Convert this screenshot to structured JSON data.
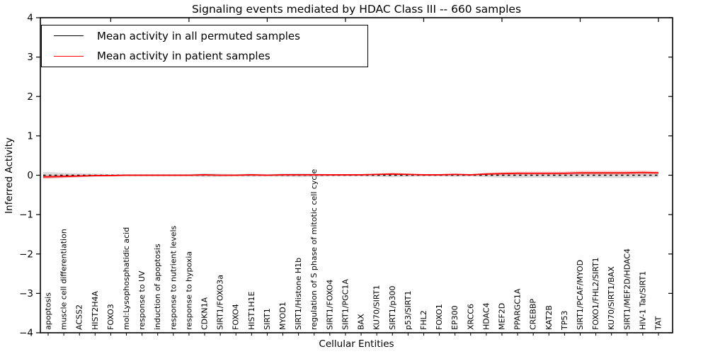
{
  "chart_data": {
    "type": "line",
    "title": "Signaling events mediated by HDAC Class III -- 660 samples",
    "xlabel": "Cellular Entities",
    "ylabel": "Inferred Activity",
    "ylim": [
      -4,
      4
    ],
    "yticks": [
      -4,
      -3,
      -2,
      -1,
      0,
      1,
      2,
      3,
      4
    ],
    "grid": false,
    "legend_position": "upper left",
    "x_major_tick_every": 5,
    "categories": [
      "apoptosis",
      "muscle cell differentiation",
      "ACSS2",
      "HIST2H4A",
      "FOXO3",
      "mol:Lysophosphatidic acid",
      "response to UV",
      "induction of apoptosis",
      "response to nutrient levels",
      "response to hypoxia",
      "CDKN1A",
      "SIRT1/FOXO3a",
      "FOXO4",
      "HIST1H1E",
      "SIRT1",
      "MYOD1",
      "SIRT1/Histone H1b",
      "regulation of S phase of mitotic cell cycle",
      "SIRT1/FOXO4",
      "SIRT1/PGC1A",
      "BAX",
      "KU70/SIRT1",
      "SIRT1/p300",
      "p53/SIRT1",
      "FHL2",
      "FOXO1",
      "EP300",
      "XRCC6",
      "HDAC4",
      "MEF2D",
      "PPARGC1A",
      "CREBBP",
      "KAT2B",
      "TP53",
      "SIRT1/PCAF/MYOD",
      "FOXO1/FHL2/SIRT1",
      "KU70/SIRT1/BAX",
      "SIRT1/MEF2D/HDAC4",
      "HIV-1 Tat/SIRT1",
      "TAT"
    ],
    "series": [
      {
        "name": "Mean activity in all permuted samples",
        "color": "#000000",
        "line_style": "dashed",
        "values": [
          0,
          0,
          0,
          0,
          0,
          0,
          0,
          0,
          0,
          0,
          0,
          0,
          0,
          0,
          0,
          0,
          0,
          0,
          0,
          0,
          0,
          0,
          0,
          0,
          0,
          0,
          0,
          0,
          0,
          0,
          0,
          0,
          0,
          0,
          0,
          0,
          0,
          0,
          0,
          0
        ]
      },
      {
        "name": "Mean activity in patient samples",
        "color": "#ff0000",
        "line_style": "solid",
        "values": [
          -0.04,
          -0.03,
          -0.02,
          -0.01,
          -0.01,
          0,
          0,
          0,
          0,
          0,
          0.01,
          0,
          0,
          0.01,
          0,
          0.01,
          0.01,
          0.01,
          0.01,
          0.01,
          0.01,
          0.02,
          0.03,
          0.02,
          0.01,
          0.01,
          0.02,
          0.01,
          0.03,
          0.04,
          0.05,
          0.05,
          0.05,
          0.05,
          0.06,
          0.06,
          0.06,
          0.06,
          0.07,
          0.06
        ]
      }
    ],
    "bands": [
      {
        "name": "permuted-samples-spread",
        "around_series": 0,
        "color": "rgba(130,130,130,0.30)",
        "half_widths": [
          0.08,
          0.06,
          0.05,
          0.04,
          0.03,
          0.03,
          0.03,
          0.03,
          0.03,
          0.03,
          0.05,
          0.04,
          0.03,
          0.04,
          0.03,
          0.04,
          0.05,
          0.04,
          0.03,
          0.03,
          0.03,
          0.04,
          0.05,
          0.04,
          0.03,
          0.03,
          0.04,
          0.03,
          0.05,
          0.06,
          0.07,
          0.06,
          0.06,
          0.07,
          0.06,
          0.06,
          0.07,
          0.07,
          0.06,
          0.05
        ]
      },
      {
        "name": "patient-samples-spread",
        "around_series": 1,
        "color": "rgba(255,70,70,0.28)",
        "half_widths": [
          0.05,
          0.04,
          0.03,
          0.02,
          0.01,
          0.01,
          0.01,
          0.01,
          0.01,
          0.01,
          0.02,
          0.01,
          0.01,
          0.01,
          0.01,
          0.01,
          0.02,
          0.01,
          0.01,
          0.01,
          0.01,
          0.02,
          0.03,
          0.02,
          0.01,
          0.01,
          0.02,
          0.01,
          0.03,
          0.04,
          0.04,
          0.04,
          0.04,
          0.04,
          0.05,
          0.05,
          0.05,
          0.05,
          0.05,
          0.04
        ]
      }
    ]
  }
}
